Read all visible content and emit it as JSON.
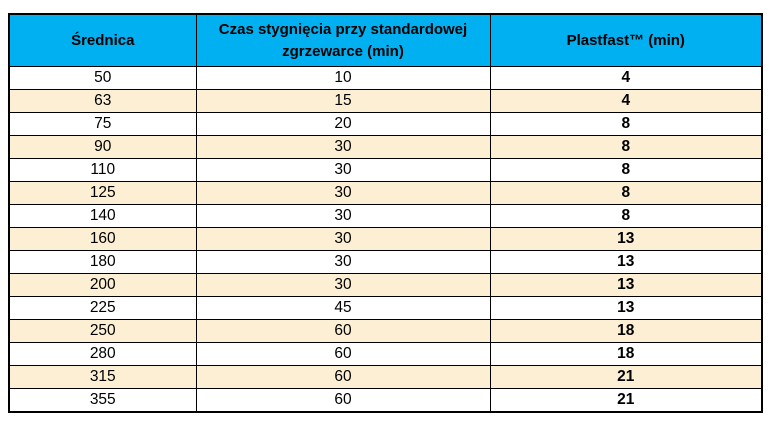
{
  "table": {
    "title": "cooling-times-table",
    "headers": {
      "diameter": "Średnica",
      "standard_welder": "Czas stygnięcia przy standardowej zgrzewarce (min)",
      "plastfast": "Plastfast™ (min)"
    },
    "rows": [
      [
        "50",
        "10",
        "4"
      ],
      [
        "63",
        "15",
        "4"
      ],
      [
        "75",
        "20",
        "8"
      ],
      [
        "90",
        "30",
        "8"
      ],
      [
        "110",
        "30",
        "8"
      ],
      [
        "125",
        "30",
        "8"
      ],
      [
        "140",
        "30",
        "8"
      ],
      [
        "160",
        "30",
        "13"
      ],
      [
        "180",
        "30",
        "13"
      ],
      [
        "200",
        "30",
        "13"
      ],
      [
        "225",
        "45",
        "13"
      ],
      [
        "250",
        "60",
        "18"
      ],
      [
        "280",
        "60",
        "18"
      ],
      [
        "315",
        "60",
        "21"
      ],
      [
        "355",
        "60",
        "21"
      ]
    ],
    "colors": {
      "header_bg": "#00B0F0",
      "row_alt_bg": "#FCEFD4",
      "border": "#000000",
      "text": "#000000"
    }
  }
}
